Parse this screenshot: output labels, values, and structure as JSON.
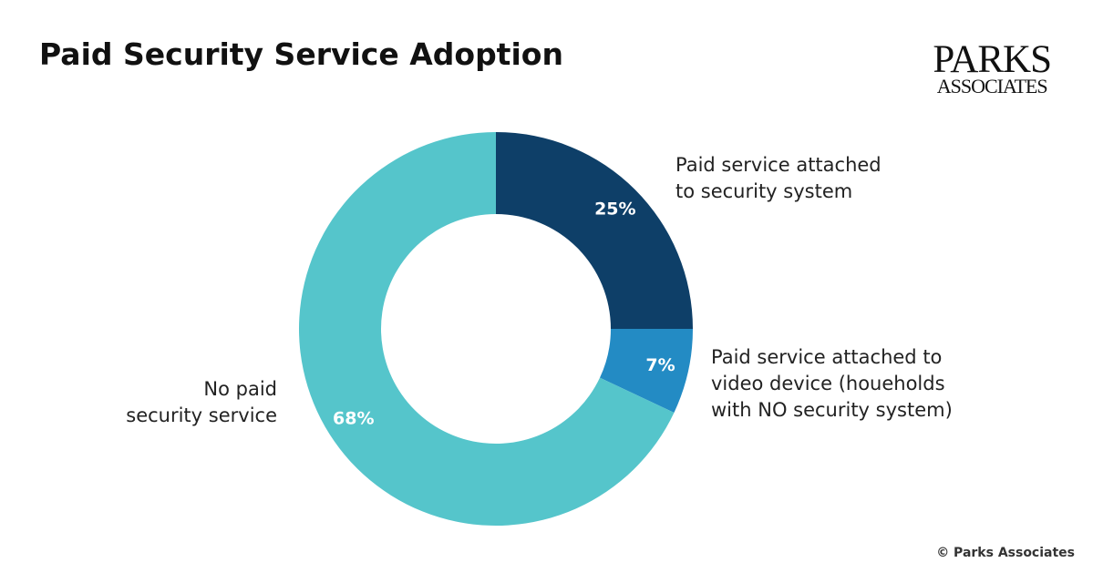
{
  "logo": [
    "PARKS",
    "ASSOCIATES"
  ],
  "source": "© Parks Associates",
  "chart_data": {
    "type": "donut",
    "title": "Paid Security Service Adoption",
    "categories": [
      "Paid service attached\nto security system",
      "Paid service attached to\nvideo device (houeholds\nwith NO security system)",
      "No paid\nsecurity service"
    ],
    "values": [
      25,
      7,
      68
    ],
    "value_labels": [
      "25%",
      "7%",
      "68%"
    ],
    "colors": [
      "#0e3f68",
      "#238bc4",
      "#55c5cb"
    ]
  }
}
